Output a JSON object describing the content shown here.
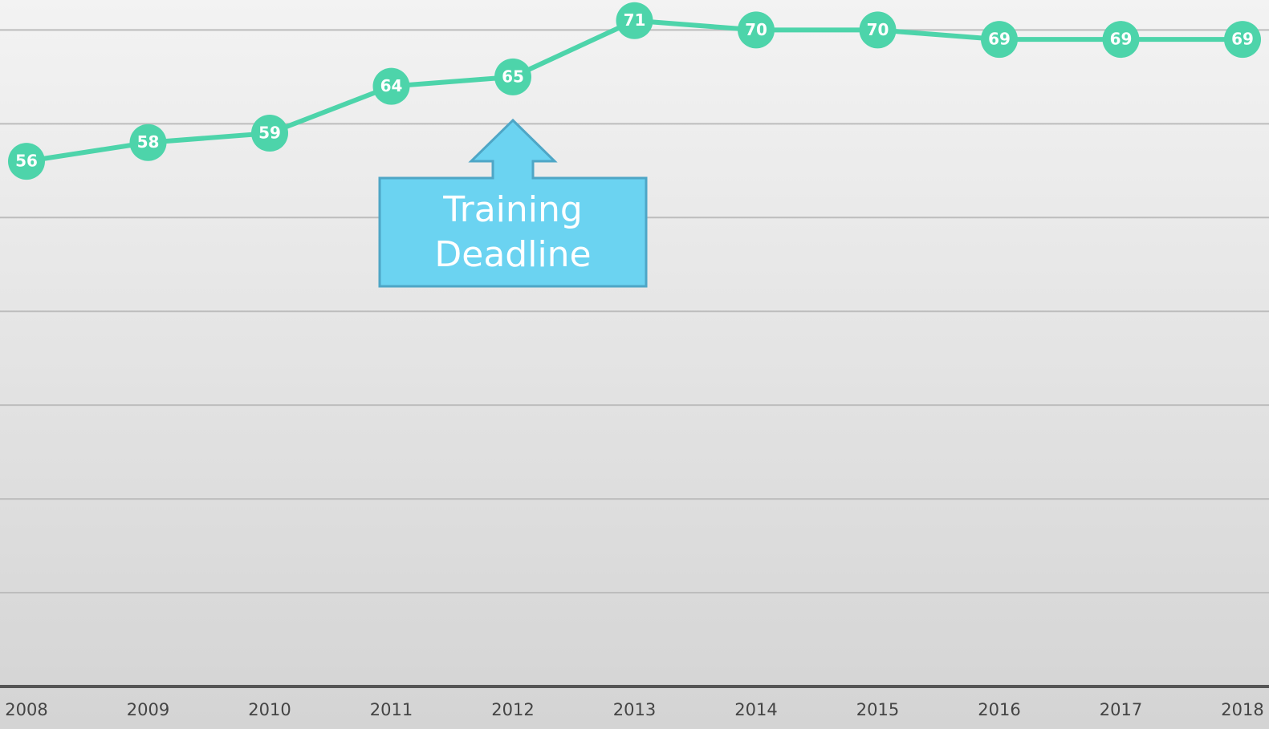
{
  "chart_data": {
    "type": "line",
    "categories": [
      "2008",
      "2009",
      "2010",
      "2011",
      "2012",
      "2013",
      "2014",
      "2015",
      "2016",
      "2017",
      "2018"
    ],
    "series": [
      {
        "color": "#4dd4aa",
        "values": [
          56,
          58,
          59,
          64,
          65,
          71,
          70,
          70,
          69,
          69,
          69
        ]
      }
    ],
    "ylim": [
      0,
      73.2
    ],
    "yticks": [
      0,
      10,
      20,
      30,
      40,
      50,
      60,
      70
    ],
    "grid": true,
    "annotation": {
      "lines": [
        "Training",
        "Deadline"
      ],
      "category": "2012"
    }
  }
}
